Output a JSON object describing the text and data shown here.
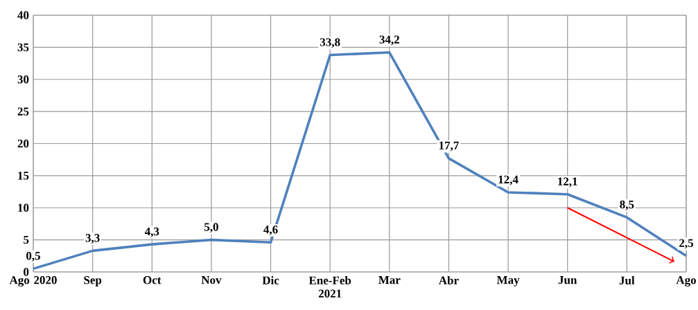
{
  "chart_data": {
    "type": "line",
    "categories": [
      "Ago 2020",
      "Sep",
      "Oct",
      "Nov",
      "Dic",
      "Ene-Feb 2021",
      "Mar",
      "Abr",
      "May",
      "Jun",
      "Jul",
      "Ago"
    ],
    "values": [
      0.5,
      3.3,
      4.3,
      5.0,
      4.6,
      33.8,
      34.2,
      17.7,
      12.4,
      12.1,
      8.5,
      2.5
    ],
    "value_labels": [
      "0,5",
      "3,3",
      "4,3",
      "5,0",
      "4,6",
      "33,8",
      "34,2",
      "17,7",
      "12,4",
      "12,1",
      "8,5",
      "2,5"
    ],
    "color": "#4f81bd",
    "ylim": [
      0,
      40
    ],
    "yticks": [
      0,
      5,
      10,
      15,
      20,
      25,
      30,
      35,
      40
    ],
    "grid": true,
    "marker": "none"
  }
}
